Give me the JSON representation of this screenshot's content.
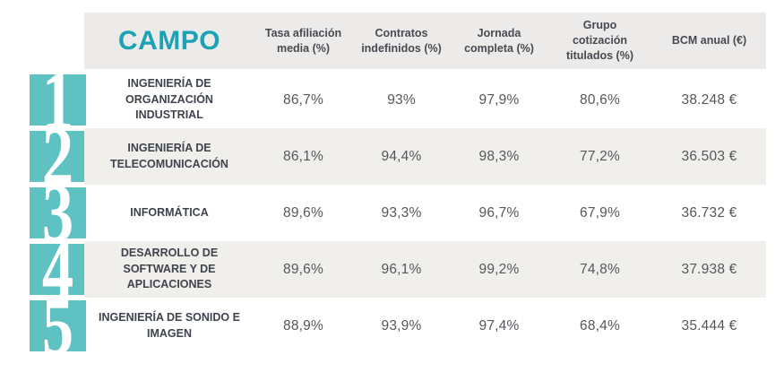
{
  "colors": {
    "rank_block_teal": "#5fc2c2",
    "campo_teal": "#1ba3b5",
    "header_bg": "#edebe9",
    "stripe_bg": "#f1efec",
    "header_text": "#474a52",
    "field_text": "#3f434d",
    "value_text": "#55575c"
  },
  "table": {
    "campo_header": "CAMPO",
    "columns": [
      "Tasa afiliación media (%)",
      "Contratos indefinidos (%)",
      "Jornada completa (%)",
      "Grupo cotización titulados (%)",
      "BCM anual (€)"
    ],
    "rows": [
      {
        "num": "1",
        "field": "INGENIERÍA DE ORGANIZACIÓN INDUSTRIAL",
        "values": [
          "86,7%",
          "93%",
          "97,9%",
          "80,6%",
          "38.248 €"
        ]
      },
      {
        "num": "2",
        "field": "INGENIERÍA DE TELECOMUNICACIÓN",
        "values": [
          "86,1%",
          "94,4%",
          "98,3%",
          "77,2%",
          "36.503 €"
        ]
      },
      {
        "num": "3",
        "field": "INFORMÁTICA",
        "values": [
          "89,6%",
          "93,3%",
          "96,7%",
          "67,9%",
          "36.732 €"
        ]
      },
      {
        "num": "4",
        "field": "DESARROLLO DE SOFTWARE Y DE APLICACIONES",
        "values": [
          "89,6%",
          "96,1%",
          "99,2%",
          "74,8%",
          "37.938 €"
        ]
      },
      {
        "num": "5",
        "field": "INGENIERÍA DE SONIDO E IMAGEN",
        "values": [
          "88,9%",
          "93,9%",
          "97,4%",
          "68,4%",
          "35.444 €"
        ]
      }
    ]
  },
  "chart_data": {
    "type": "table",
    "title": "CAMPO",
    "columns": [
      "Tasa afiliación media (%)",
      "Contratos indefinidos (%)",
      "Jornada completa (%)",
      "Grupo cotización titulados (%)",
      "BCM anual (€)"
    ],
    "rows": [
      {
        "rank": 1,
        "campo": "Ingeniería de Organización Industrial",
        "tasa_afiliacion_media_pct": 86.7,
        "contratos_indefinidos_pct": 93,
        "jornada_completa_pct": 97.9,
        "grupo_cotizacion_titulados_pct": 80.6,
        "bcm_anual_eur": 38248
      },
      {
        "rank": 2,
        "campo": "Ingeniería de Telecomunicación",
        "tasa_afiliacion_media_pct": 86.1,
        "contratos_indefinidos_pct": 94.4,
        "jornada_completa_pct": 98.3,
        "grupo_cotizacion_titulados_pct": 77.2,
        "bcm_anual_eur": 36503
      },
      {
        "rank": 3,
        "campo": "Informática",
        "tasa_afiliacion_media_pct": 89.6,
        "contratos_indefinidos_pct": 93.3,
        "jornada_completa_pct": 96.7,
        "grupo_cotizacion_titulados_pct": 67.9,
        "bcm_anual_eur": 36732
      },
      {
        "rank": 4,
        "campo": "Desarrollo de Software y de Aplicaciones",
        "tasa_afiliacion_media_pct": 89.6,
        "contratos_indefinidos_pct": 96.1,
        "jornada_completa_pct": 99.2,
        "grupo_cotizacion_titulados_pct": 74.8,
        "bcm_anual_eur": 37938
      },
      {
        "rank": 5,
        "campo": "Ingeniería de Sonido e Imagen",
        "tasa_afiliacion_media_pct": 88.9,
        "contratos_indefinidos_pct": 93.9,
        "jornada_completa_pct": 97.4,
        "grupo_cotizacion_titulados_pct": 68.4,
        "bcm_anual_eur": 35444
      }
    ]
  }
}
